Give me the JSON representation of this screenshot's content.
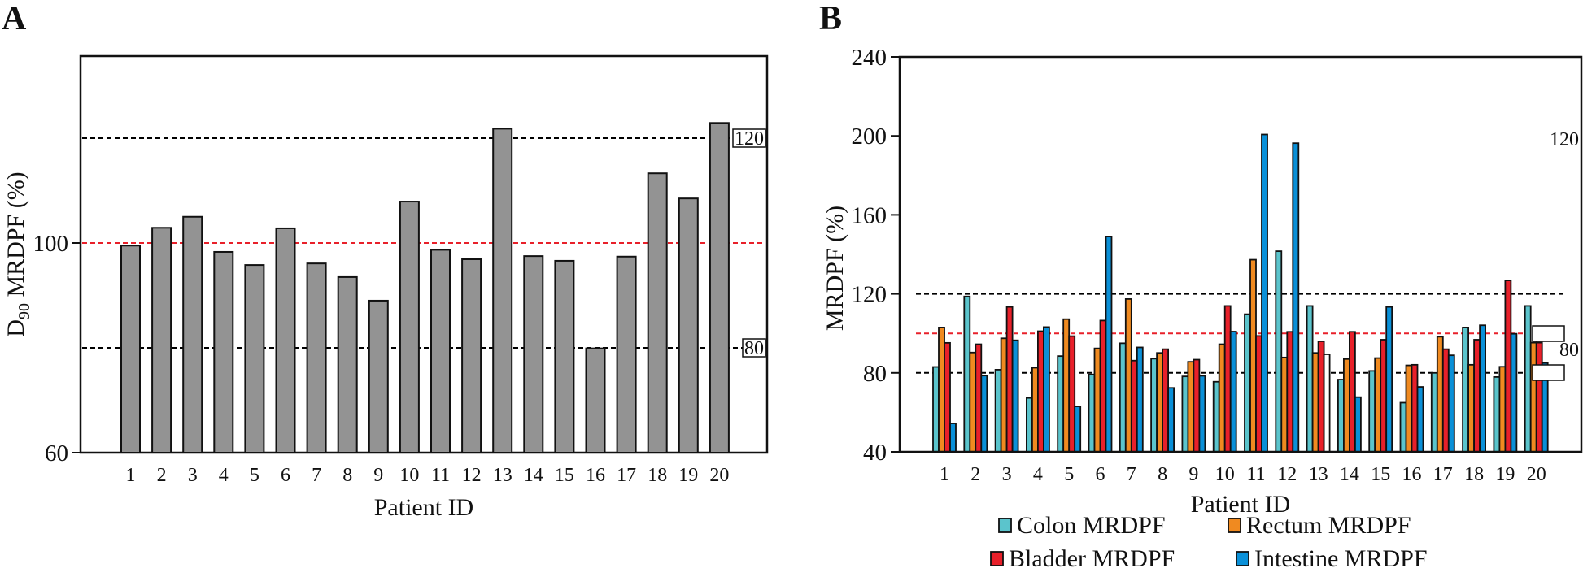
{
  "chart_data": [
    {
      "panel": "A",
      "type": "bar",
      "xlabel": "Patient ID",
      "ylabel": "D90 MRDPF (%)",
      "ylabel_main": "D",
      "ylabel_sub": "90",
      "ylabel_rest": " MRDPF (%)",
      "ylim": [
        60,
        136
      ],
      "yticks": [
        60,
        100
      ],
      "categories": [
        "1",
        "2",
        "3",
        "4",
        "5",
        "6",
        "7",
        "8",
        "9",
        "10",
        "11",
        "12",
        "13",
        "14",
        "15",
        "16",
        "17",
        "18",
        "19",
        "20"
      ],
      "values": [
        99.5,
        102.9,
        105.0,
        98.3,
        95.8,
        102.8,
        96.1,
        93.5,
        89.0,
        107.9,
        98.7,
        96.9,
        121.8,
        97.5,
        96.6,
        79.9,
        97.4,
        113.3,
        108.5,
        122.9
      ],
      "bar_color": "#939393",
      "reference_lines": [
        {
          "value": 120,
          "color": "#000000",
          "label": "120",
          "style": "dashed"
        },
        {
          "value": 100,
          "color": "#e8202a",
          "label": "",
          "style": "dashed"
        },
        {
          "value": 80,
          "color": "#000000",
          "label": "80",
          "style": "dashed"
        }
      ],
      "grid": false
    },
    {
      "panel": "B",
      "type": "bar",
      "xlabel": "Patient ID",
      "ylabel": "MRDPF (%)",
      "ylim": [
        40,
        240
      ],
      "yticks": [
        40,
        80,
        120,
        160,
        200,
        240
      ],
      "categories": [
        "1",
        "2",
        "3",
        "4",
        "5",
        "6",
        "7",
        "8",
        "9",
        "10",
        "11",
        "12",
        "13",
        "14",
        "15",
        "16",
        "17",
        "18",
        "19",
        "20"
      ],
      "series": [
        {
          "name": "Colon MRDPF",
          "color": "#5bc4cc",
          "values": [
            83.0,
            118.7,
            81.6,
            67.3,
            88.5,
            79.2,
            95.0,
            87.2,
            78.2,
            75.5,
            109.7,
            141.6,
            113.9,
            76.6,
            81.0,
            64.9,
            80.0,
            103.0,
            77.9,
            113.9
          ]
        },
        {
          "name": "Rectum MRDPF",
          "color": "#f08a20",
          "values": [
            103.0,
            90.3,
            97.5,
            82.6,
            107.2,
            92.4,
            117.4,
            90.1,
            85.6,
            94.5,
            137.3,
            87.8,
            90.1,
            87.0,
            87.5,
            83.8,
            98.3,
            84.1,
            83.1,
            95.3
          ]
        },
        {
          "name": "Bladder MRDPF",
          "color": "#e8202a",
          "values": [
            95.2,
            94.5,
            113.4,
            101.1,
            98.6,
            106.5,
            86.2,
            92.0,
            86.7,
            113.9,
            98.7,
            100.8,
            96.0,
            100.8,
            96.8,
            84.1,
            92.0,
            96.8,
            126.8,
            95.3
          ]
        },
        {
          "name": "Intestine MRDPF",
          "color": "#0a90d8",
          "values": [
            54.4,
            78.6,
            96.5,
            103.2,
            63.0,
            149.0,
            92.9,
            72.4,
            78.5,
            100.9,
            200.7,
            196.3,
            89.4,
            67.7,
            113.4,
            72.9,
            88.9,
            104.1,
            99.8,
            85.0
          ],
          "unfilled_indices": [
            12
          ]
        }
      ],
      "reference_lines": [
        {
          "value": 120,
          "color": "#000000",
          "style": "dashed"
        },
        {
          "value": 100,
          "color": "#e8202a",
          "style": "dashed"
        },
        {
          "value": 80,
          "color": "#000000",
          "style": "dashed"
        }
      ],
      "stray_labels": [
        "120",
        "80"
      ],
      "legend": {
        "placement": "bottom",
        "columns": 2
      },
      "grid": false
    }
  ],
  "panels": {
    "a_letter": "A",
    "b_letter": "B"
  }
}
